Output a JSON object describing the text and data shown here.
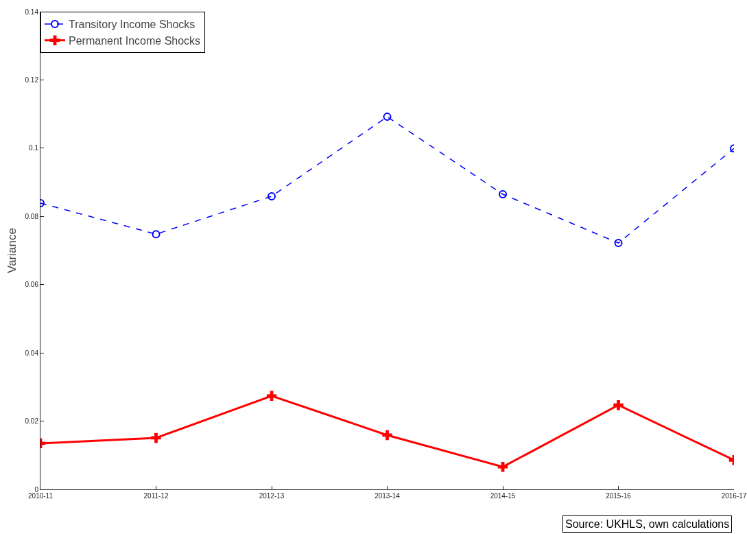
{
  "chart_data": {
    "type": "line",
    "ylabel": "Variance",
    "categories": [
      "2010-11",
      "2011-12",
      "2012-13",
      "2013-14",
      "2014-15",
      "2015-16",
      "2016-17"
    ],
    "series": [
      {
        "name": "Transitory Income Shocks",
        "color": "#0000ff",
        "marker": "circle",
        "line_style": "dashed",
        "values": [
          0.0839,
          0.0748,
          0.0859,
          0.1092,
          0.0865,
          0.0722,
          0.0999
        ]
      },
      {
        "name": "Permanent Income Shocks",
        "color": "#ff0000",
        "marker": "cross",
        "line_style": "solid",
        "values": [
          0.0135,
          0.0151,
          0.0274,
          0.0159,
          0.0066,
          0.0247,
          0.0086
        ]
      }
    ],
    "ylim": [
      0,
      0.14
    ],
    "yticks": [
      0,
      0.02,
      0.04,
      0.06,
      0.08,
      0.1,
      0.12,
      0.14
    ],
    "grid": false,
    "legend": "top left",
    "annotations": [
      "Source: UKHLS, own calculations"
    ]
  }
}
